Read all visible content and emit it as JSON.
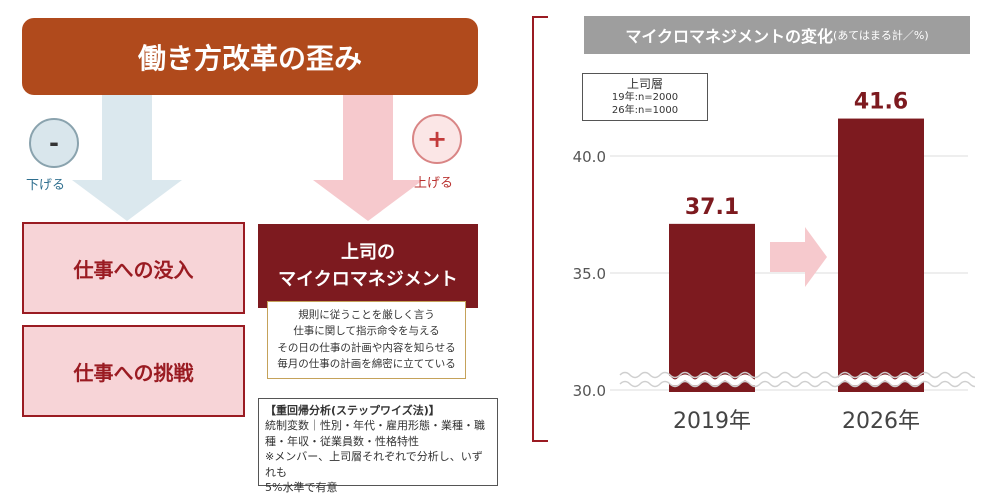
{
  "header": {
    "title": "働き方改革の歪み"
  },
  "indicators": {
    "minus_symbol": "-",
    "plus_symbol": "+",
    "lower_label": "下げる",
    "raise_label": "上げる"
  },
  "outcomes": [
    {
      "label": "仕事への没入"
    },
    {
      "label": "仕事への挑戦"
    }
  ],
  "micromanagement": {
    "line1": "上司の",
    "line2": "マイクロマネジメント"
  },
  "items": [
    "規則に従うことを厳しく言う",
    "仕事に関して指示命令を与える",
    "その日の仕事の計画や内容を知らせる",
    "毎月の仕事の計画を綿密に立てている"
  ],
  "regression": {
    "title": "【重回帰分析(ステップワイズ法)】",
    "line1": "統制変数｜性別・年代・雇用形態・業種・職",
    "line2": "種・年収・従業員数・性格特性",
    "line3": "※メンバー、上司層それぞれで分析し、いずれも",
    "line4": "5%水準で有意"
  },
  "chart_header": {
    "title": "マイクロマネジメントの変化",
    "subtitle": "(あてはまる計／%)"
  },
  "legend": {
    "group": "上司層",
    "n1": "19年:n=2000",
    "n2": "26年:n=1000"
  },
  "colors": {
    "bar": "#7d1a1f",
    "accent_pink": "#f7d4d7",
    "title_bar": "#b04a1c",
    "arrow_blue": "#dbe8ee",
    "arrow_pink": "#f6c9cd"
  },
  "chart_data": {
    "type": "bar",
    "categories": [
      "2019年",
      "2026年"
    ],
    "values": [
      37.1,
      41.6
    ],
    "ylim": [
      30.0,
      43.0
    ],
    "yticks": [
      "30.0",
      "35.0",
      "40.0"
    ],
    "data_labels": [
      "37.1",
      "41.6"
    ],
    "grid": true
  }
}
